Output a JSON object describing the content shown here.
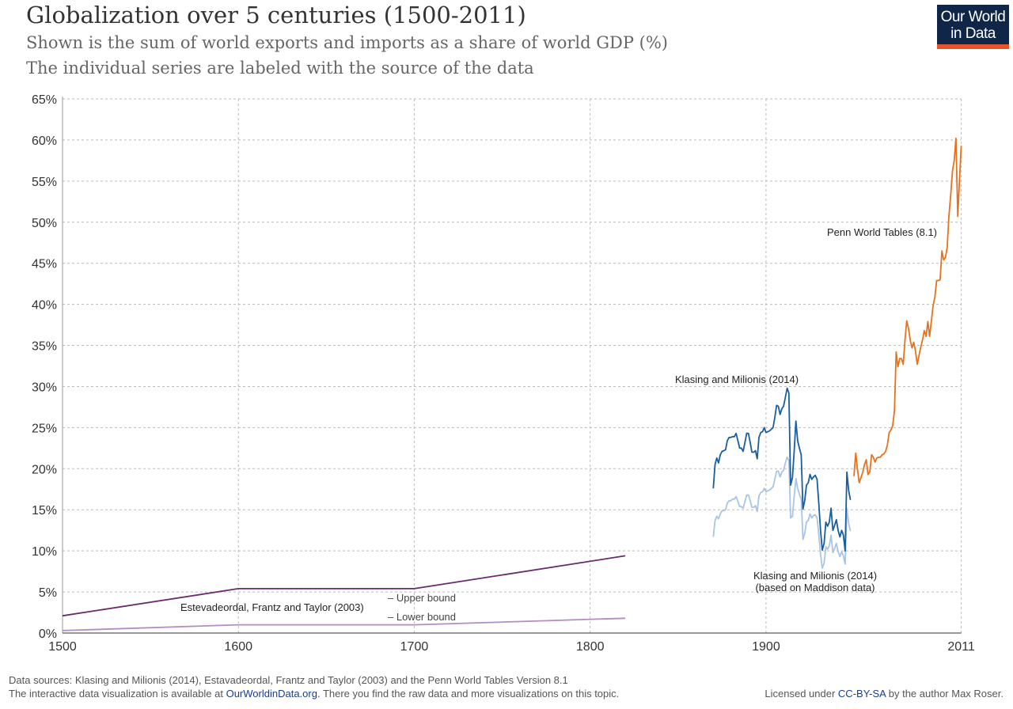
{
  "header": {
    "title": "Globalization over 5 centuries (1500-2011)",
    "subtitle1": "Shown is the sum of world exports and imports as a share of world GDP (%)",
    "subtitle2": "The individual series are labeled with the source of the data",
    "logo_line1": "Our World",
    "logo_line2": "in Data"
  },
  "footer": {
    "sources": "Data sources: Klasing and Milionis (2014), Estavadeordal, Frantz and Taylor (2003) and the Penn World Tables Version 8.1",
    "interactive_pre": "The interactive data visualization is available at ",
    "interactive_link": "OurWorldinData.org.",
    "interactive_post": " There you find the raw data and more visualizations on this topic.",
    "license_pre": "Licensed under ",
    "license_link": "CC-BY-SA",
    "license_post": " by the author Max Roser."
  },
  "chart_data": {
    "type": "line",
    "xlim": [
      1500,
      2011
    ],
    "ylim": [
      0,
      65
    ],
    "x_ticks": [
      1500,
      1600,
      1700,
      1800,
      1900,
      2011
    ],
    "y_ticks": [
      0,
      5,
      10,
      15,
      20,
      25,
      30,
      35,
      40,
      45,
      50,
      55,
      60,
      65
    ],
    "y_tick_suffix": "%",
    "grid": true,
    "annotations": {
      "klasing": "Klasing and Milionis (2014)",
      "penn": "Penn World Tables (8.1)",
      "maddison1": "Klasing and Milionis (2014)",
      "maddison2": "(based on Maddison data)",
      "estevadeordal": "Estevadeordal, Frantz and Taylor (2003)",
      "upper": "– Upper bound",
      "lower": "– Lower bound"
    },
    "series": [
      {
        "key": "est_upper",
        "color": "#6a2a6e",
        "x": [
          1500,
          1600,
          1700,
          1820
        ],
        "y": [
          2.1,
          5.4,
          5.4,
          9.4
        ]
      },
      {
        "key": "est_lower",
        "color": "#b48cc2",
        "x": [
          1500,
          1600,
          1700,
          1820
        ],
        "y": [
          0.3,
          1.0,
          1.0,
          1.8
        ]
      },
      {
        "key": "klasing_maddison",
        "color": "#a9c4e6",
        "x_start": 1870,
        "y": [
          11.7,
          13.7,
          14.2,
          13.9,
          14.5,
          14.9,
          14.9,
          15.0,
          15.8,
          16.1,
          16.1,
          16.3,
          16.3,
          16.6,
          16.0,
          15.4,
          15.4,
          15.2,
          16.0,
          16.8,
          16.8,
          16.1,
          15.3,
          15.3,
          15.5,
          14.8,
          16.7,
          17.1,
          17.2,
          17.6,
          17.2,
          17.3,
          17.4,
          17.6,
          17.8,
          18.7,
          19.7,
          19.7,
          19.0,
          19.6,
          19.8,
          20.7,
          21.4,
          21.0,
          14.0,
          14.2,
          16.6,
          18.8,
          17.6,
          16.9,
          16.3,
          11.4,
          12.1,
          13.5,
          13.7,
          14.5,
          14.0,
          14.3,
          14.4,
          14.0,
          12.0,
          9.6,
          7.9,
          8.5,
          10.5,
          10.2,
          10.6,
          11.9,
          9.8,
          10.3,
          10.9,
          9.9,
          9.3,
          9.9,
          9.4,
          8.4,
          15.2,
          13.3,
          12.4
        ]
      },
      {
        "key": "klasing",
        "color": "#1a5e9e",
        "x_start": 1870,
        "y": [
          17.6,
          20.5,
          21.3,
          20.7,
          21.7,
          22.1,
          22.2,
          22.3,
          23.4,
          23.8,
          23.8,
          23.9,
          23.9,
          24.3,
          23.4,
          22.5,
          22.5,
          22.1,
          23.2,
          24.3,
          24.3,
          23.2,
          22.0,
          22.0,
          22.2,
          21.2,
          23.8,
          24.4,
          24.5,
          25.0,
          24.4,
          24.5,
          24.6,
          24.8,
          25.0,
          26.2,
          27.7,
          27.6,
          26.6,
          27.3,
          27.6,
          28.7,
          29.8,
          29.2,
          18.0,
          18.9,
          22.1,
          25.8,
          23.4,
          22.5,
          21.7,
          15.1,
          16.1,
          18.0,
          18.3,
          19.3,
          18.7,
          19.0,
          19.2,
          18.7,
          15.8,
          12.5,
          10.1,
          10.9,
          13.5,
          13.0,
          13.5,
          15.2,
          12.5,
          13.1,
          13.8,
          12.5,
          11.7,
          12.5,
          11.9,
          10.0,
          19.6,
          17.3,
          16.2
        ]
      },
      {
        "key": "penn",
        "color": "#e8711c",
        "x_start": 1950,
        "y": [
          19.1,
          21.9,
          19.9,
          18.3,
          18.9,
          19.6,
          20.5,
          21.1,
          19.3,
          19.6,
          21.7,
          21.4,
          20.8,
          21.3,
          21.4,
          21.4,
          21.7,
          21.8,
          22.1,
          22.9,
          24.4,
          24.7,
          25.2,
          27.0,
          34.2,
          32.4,
          33.4,
          33.4,
          32.7,
          35.6,
          38.0,
          37.1,
          35.6,
          34.7,
          35.4,
          34.3,
          32.7,
          33.8,
          34.8,
          35.7,
          36.8,
          36.1,
          37.9,
          36.1,
          37.9,
          39.8,
          40.9,
          42.9,
          42.9,
          43.0,
          46.5,
          45.4,
          45.7,
          46.9,
          50.7,
          53.3,
          56.2,
          57.5,
          60.2,
          50.7,
          55.2,
          59.3
        ]
      }
    ]
  }
}
